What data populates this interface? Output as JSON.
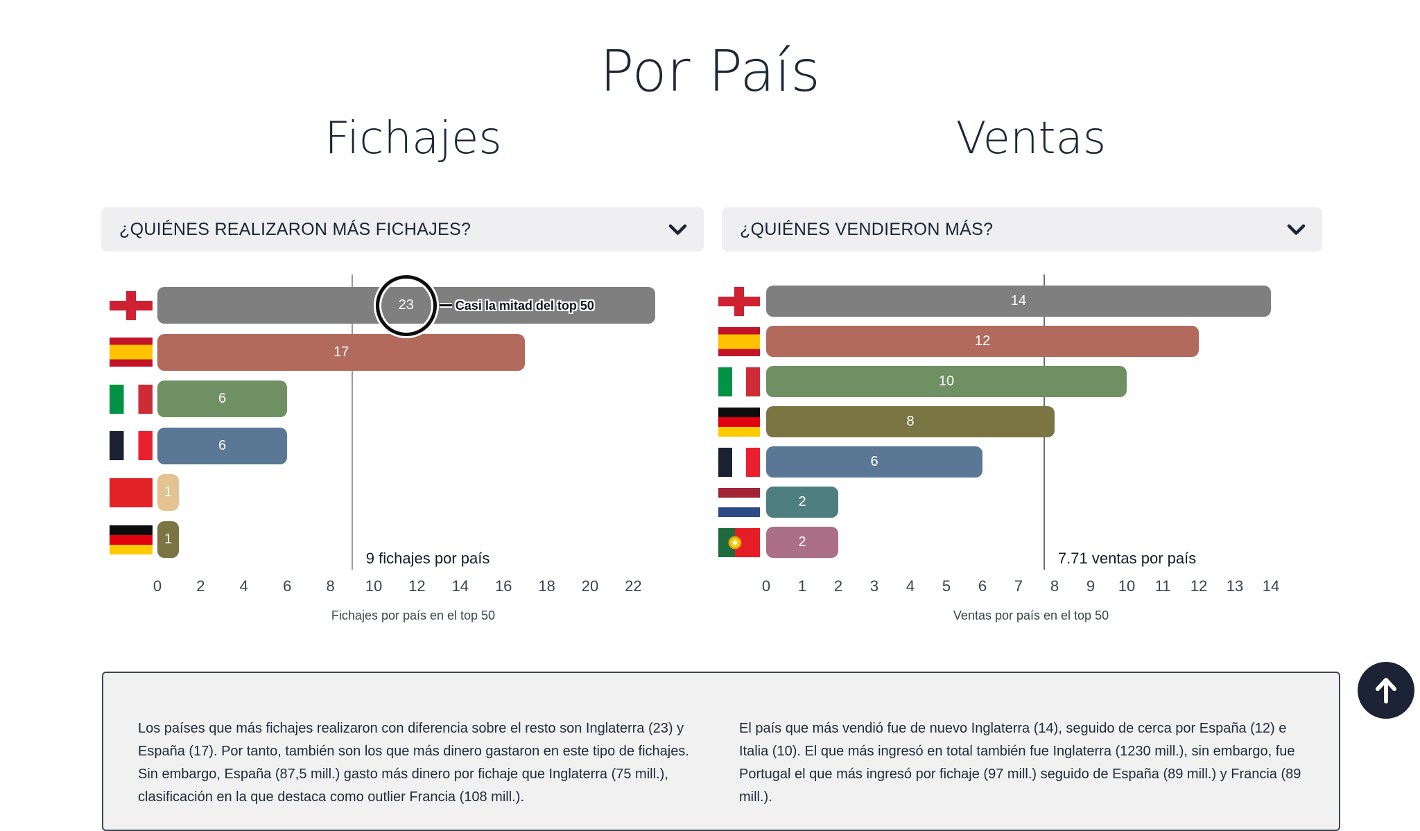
{
  "page": {
    "title": "Por País"
  },
  "sections": [
    {
      "title": "Fichajes",
      "header": {
        "question": "¿QUIÉNES REALIZARON MÁS FICHAJES?",
        "chevron_icon": "chevron-down"
      },
      "summary": "Los países que más fichajes realizaron con diferencia sobre el resto son Inglaterra (23) y España (17). Por tanto, también son los que más dinero gastaron en este tipo de fichajes. Sin embargo, España (87,5 mill.) gasto más dinero por fichaje que Inglaterra (75 mill.), clasificación en la que destaca como outlier Francia (108 mill.)."
    },
    {
      "title": "Ventas",
      "header": {
        "question": "¿QUIÉNES VENDIERON MÁS?",
        "chevron_icon": "chevron-down"
      },
      "summary": "El país que más vendió fue de nuevo Inglaterra (14), seguido de cerca por España (12) e Italia (10). El que más ingresó en total también fue Inglaterra (1230 mill.), sin embargo, fue Portugal el que más ingresó por fichaje (97 mill.) seguido de España (89 mill.) y Francia (89 mill.)."
    }
  ],
  "chart_data": [
    {
      "type": "bar",
      "orientation": "horizontal",
      "title": "¿QUIÉNES REALIZARON MÁS FICHAJES?",
      "categories": [
        "england",
        "spain",
        "italy",
        "france",
        "red",
        "germany"
      ],
      "values": [
        23,
        17,
        6,
        6,
        1,
        1
      ],
      "bar_colors": [
        "#7f7f7f",
        "#b16a5c",
        "#6f9062",
        "#5a7795",
        "#e3c38f",
        "#7b7544"
      ],
      "value_label_color": "#ffffff",
      "xlabel": "Fichajes por país en el top 50",
      "x_ticks": [
        0,
        2,
        4,
        6,
        8,
        10,
        12,
        14,
        16,
        18,
        20,
        22
      ],
      "xlim": [
        0,
        22
      ],
      "grid": false,
      "legend": "none",
      "average_line": {
        "value": 9,
        "label": "9 fichajes por país",
        "color": "#9b9b9b"
      },
      "annotation": {
        "text": "Casi la mitad del top 50",
        "row": 0,
        "value": 23
      }
    },
    {
      "type": "bar",
      "orientation": "horizontal",
      "title": "¿QUIÉNES VENDIERON MÁS?",
      "categories": [
        "england",
        "spain",
        "italy",
        "germany",
        "france",
        "netherlands",
        "portugal"
      ],
      "values": [
        14,
        12,
        10,
        8,
        6,
        2,
        2
      ],
      "bar_colors": [
        "#7f7f7f",
        "#b16a5c",
        "#6f9062",
        "#7b7544",
        "#5a7795",
        "#4f7e80",
        "#ab7086"
      ],
      "value_label_color": "#ffffff",
      "xlabel": "Ventas por país en el top 50",
      "x_ticks": [
        0,
        1,
        2,
        3,
        4,
        5,
        6,
        7,
        8,
        9,
        10,
        11,
        12,
        13,
        14
      ],
      "xlim": [
        0,
        14
      ],
      "grid": false,
      "legend": "none",
      "average_line": {
        "value": 7.71,
        "label": "7.71 ventas por país",
        "color": "#6f6f6f"
      }
    }
  ],
  "scroll_top_button": {
    "icon": "arrow-up",
    "background": "#1b2335"
  }
}
